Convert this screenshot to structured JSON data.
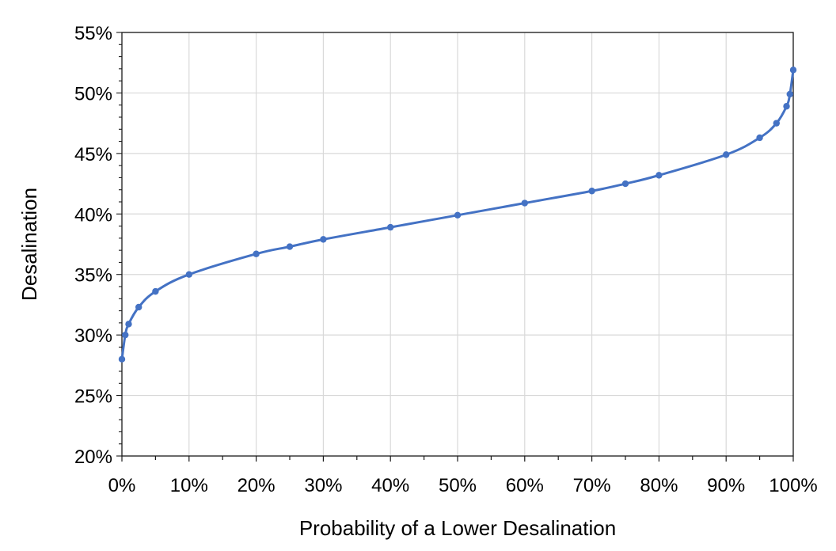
{
  "chart_data": {
    "type": "line",
    "title": "",
    "xlabel": "Probability of a Lower Desalination",
    "ylabel": "Desalination",
    "xlim": [
      0,
      100
    ],
    "ylim": [
      20,
      55
    ],
    "x_ticks": [
      0,
      10,
      20,
      30,
      40,
      50,
      60,
      70,
      80,
      90,
      100
    ],
    "x_tick_labels": [
      "0%",
      "10%",
      "20%",
      "30%",
      "40%",
      "50%",
      "60%",
      "70%",
      "80%",
      "90%",
      "100%"
    ],
    "y_ticks": [
      20,
      25,
      30,
      35,
      40,
      45,
      50,
      55
    ],
    "y_tick_labels": [
      "20%",
      "25%",
      "30%",
      "35%",
      "40%",
      "45%",
      "50%",
      "55%"
    ],
    "grid": true,
    "legend": "none",
    "series": [
      {
        "color": "#4472C4",
        "x": [
          0,
          0.5,
          1,
          2.5,
          5,
          10,
          20,
          25,
          30,
          40,
          50,
          60,
          70,
          75,
          80,
          90,
          95,
          97.5,
          99,
          99.5,
          100
        ],
        "y": [
          28.0,
          30.0,
          30.9,
          32.3,
          33.6,
          35.0,
          36.7,
          37.3,
          37.9,
          38.9,
          39.9,
          40.9,
          41.9,
          42.5,
          43.2,
          44.9,
          46.3,
          47.5,
          48.9,
          49.9,
          51.9
        ]
      }
    ]
  }
}
